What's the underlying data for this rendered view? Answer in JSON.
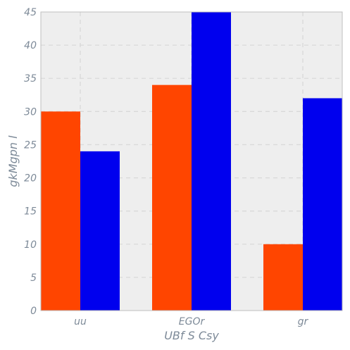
{
  "chart_data": {
    "type": "bar",
    "categories": [
      "uu",
      "EGOr",
      "gr"
    ],
    "series": [
      {
        "values": [
          30,
          34,
          10
        ],
        "color": "#ff4500"
      },
      {
        "values": [
          24,
          45,
          32
        ],
        "color": "#0000ee"
      }
    ],
    "xlabel": "UBf S Csy",
    "ylabel": "gkMgpn l",
    "ylim": [
      0,
      45
    ],
    "yticks": [
      0,
      5,
      10,
      15,
      20,
      25,
      30,
      35,
      40,
      45
    ],
    "grid": true,
    "background_color": "#eeeeee",
    "legend": false
  }
}
